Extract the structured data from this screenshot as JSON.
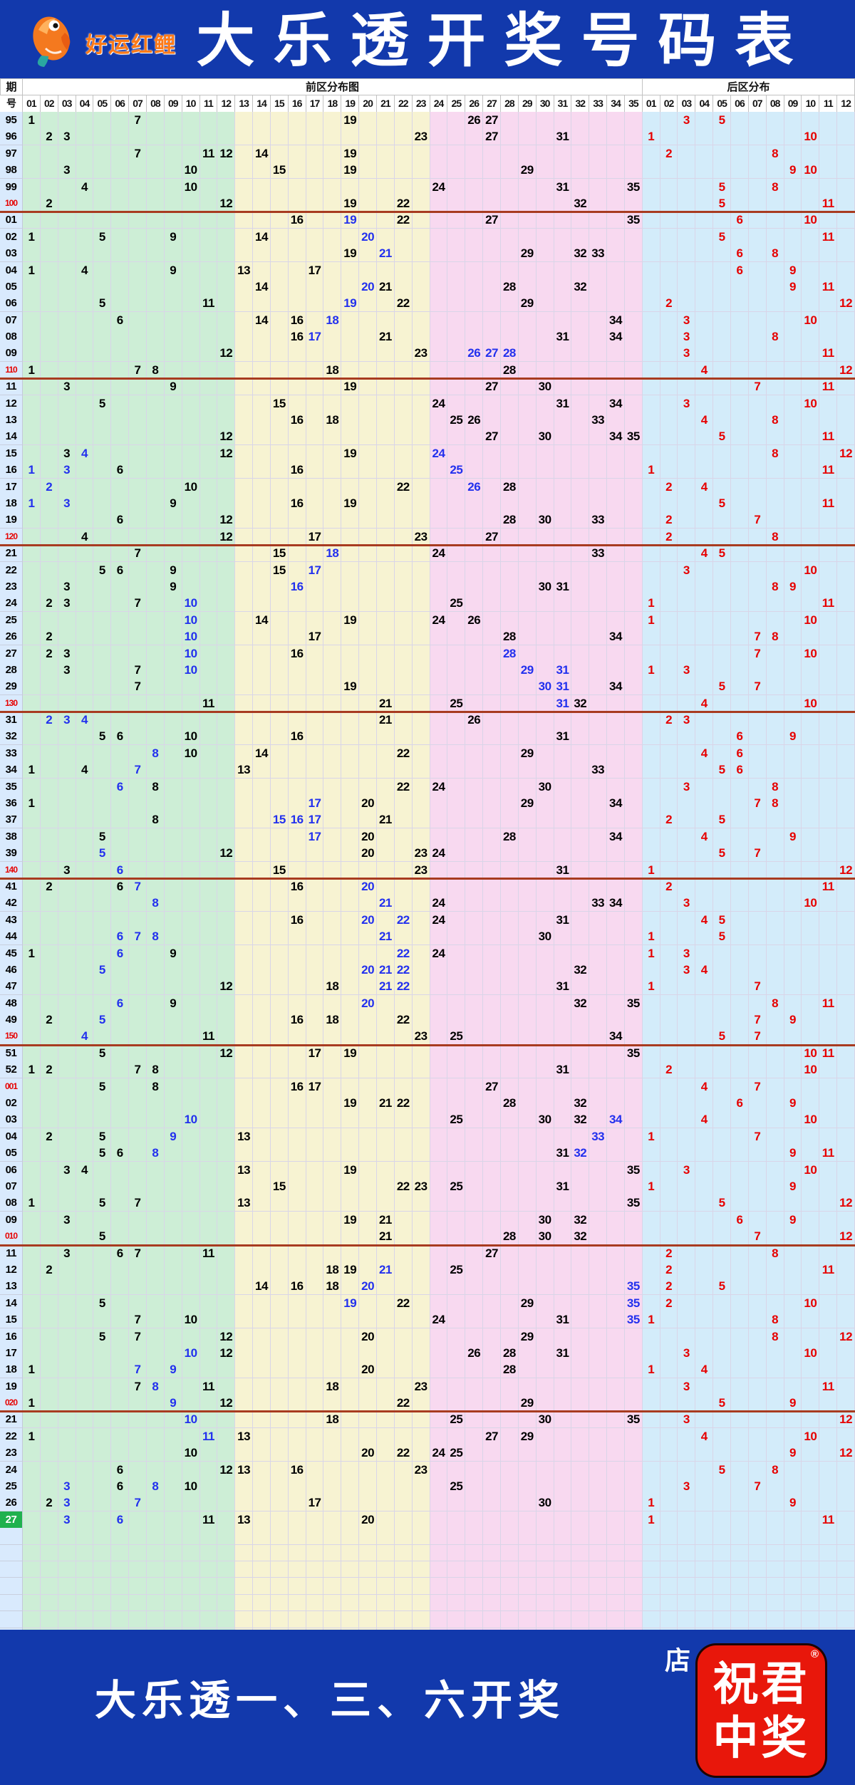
{
  "header": {
    "logo_text": "好运红鲤",
    "title": "大乐透开奖号码表"
  },
  "colors": {
    "banner_blue": "#1239ac",
    "zone_front_green": "#cdeed6",
    "zone_front_yellow": "#f7f3d2",
    "zone_front_pink": "#f8d9f0",
    "zone_back_blue": "#d3ecfa",
    "period_column_blue": "#d9eafd",
    "number_black": "#000000",
    "number_blue": "#2230ee",
    "number_red": "#e60000",
    "milestone_line_red": "#a83b20",
    "latest_row_green": "#1fb14e",
    "logo_orange": "#ff7a18",
    "badge_red": "#e8170b"
  },
  "chart_data": {
    "type": "table",
    "title": "大乐透开奖号码表",
    "period_label_top": "期",
    "period_label_bottom": "号",
    "front_zone_label": "前区分布图",
    "back_zone_label": "后区分布",
    "front_columns": [
      "01",
      "02",
      "03",
      "04",
      "05",
      "06",
      "07",
      "08",
      "09",
      "10",
      "11",
      "12",
      "13",
      "14",
      "15",
      "16",
      "17",
      "18",
      "19",
      "20",
      "21",
      "22",
      "23",
      "24",
      "25",
      "26",
      "27",
      "28",
      "29",
      "30",
      "31",
      "32",
      "33",
      "34",
      "35"
    ],
    "back_columns": [
      "01",
      "02",
      "03",
      "04",
      "05",
      "06",
      "07",
      "08",
      "09",
      "10",
      "11",
      "12"
    ],
    "zone_splits": {
      "green_cols": "01-12",
      "yellow_cols": "13-23",
      "pink_cols": "24-35"
    },
    "value_suffix_b_means": "blue-highlighted number",
    "rows": [
      {
        "p": "95",
        "f": [
          "1",
          "7",
          "19",
          "26",
          "27"
        ],
        "b": [
          "3",
          "5"
        ]
      },
      {
        "p": "96",
        "f": [
          "2",
          "3",
          "23",
          "27",
          "31"
        ],
        "b": [
          "1",
          "10"
        ]
      },
      {
        "p": "97",
        "f": [
          "7",
          "11",
          "12",
          "14",
          "19"
        ],
        "b": [
          "2",
          "8"
        ]
      },
      {
        "p": "98",
        "f": [
          "3",
          "10",
          "15",
          "19",
          "29"
        ],
        "b": [
          "9",
          "10"
        ]
      },
      {
        "p": "99",
        "f": [
          "4",
          "10",
          "24",
          "31",
          "35"
        ],
        "b": [
          "5",
          "8"
        ]
      },
      {
        "p": "100",
        "f": [
          "2",
          "12",
          "19",
          "22",
          "32"
        ],
        "b": [
          "5",
          "11"
        ],
        "r": 1,
        "l": 1
      },
      {
        "p": "01",
        "f": [
          "16",
          "19b",
          "22",
          "27",
          "35"
        ],
        "b": [
          "6",
          "10"
        ]
      },
      {
        "p": "02",
        "f": [
          "1",
          "5",
          "9",
          "14",
          "20b"
        ],
        "b": [
          "5",
          "11"
        ]
      },
      {
        "p": "03",
        "f": [
          "19",
          "21b",
          "29",
          "32",
          "33"
        ],
        "b": [
          "6",
          "8"
        ]
      },
      {
        "p": "04",
        "f": [
          "1",
          "4",
          "9",
          "13",
          "17"
        ],
        "b": [
          "6",
          "9"
        ]
      },
      {
        "p": "05",
        "f": [
          "14",
          "20b",
          "21",
          "28",
          "32"
        ],
        "b": [
          "9",
          "11"
        ]
      },
      {
        "p": "06",
        "f": [
          "5",
          "11",
          "19b",
          "22",
          "29"
        ],
        "b": [
          "2",
          "12"
        ]
      },
      {
        "p": "07",
        "f": [
          "6",
          "14",
          "16",
          "18b",
          "34"
        ],
        "b": [
          "3",
          "10"
        ]
      },
      {
        "p": "08",
        "f": [
          "16",
          "17b",
          "21",
          "31",
          "34"
        ],
        "b": [
          "3",
          "8"
        ]
      },
      {
        "p": "09",
        "f": [
          "12",
          "23",
          "26b",
          "27b",
          "28b"
        ],
        "b": [
          "3",
          "11"
        ]
      },
      {
        "p": "110",
        "f": [
          "1",
          "7",
          "8",
          "18",
          "28"
        ],
        "b": [
          "4",
          "12"
        ],
        "r": 1,
        "l": 1
      },
      {
        "p": "11",
        "f": [
          "3",
          "9",
          "19",
          "27",
          "30"
        ],
        "b": [
          "7",
          "11"
        ]
      },
      {
        "p": "12",
        "f": [
          "5",
          "15",
          "24",
          "31",
          "34"
        ],
        "b": [
          "3",
          "10"
        ]
      },
      {
        "p": "13",
        "f": [
          "16",
          "18",
          "25",
          "26",
          "33"
        ],
        "b": [
          "4",
          "8"
        ]
      },
      {
        "p": "14",
        "f": [
          "12",
          "27",
          "30",
          "34",
          "35"
        ],
        "b": [
          "5",
          "11"
        ]
      },
      {
        "p": "15",
        "f": [
          "3",
          "4b",
          "12",
          "19",
          "24b"
        ],
        "b": [
          "8",
          "12"
        ]
      },
      {
        "p": "16",
        "f": [
          "1b",
          "3b",
          "6",
          "16",
          "25b"
        ],
        "b": [
          "1",
          "11"
        ]
      },
      {
        "p": "17",
        "f": [
          "2b",
          "10",
          "22",
          "26b",
          "28"
        ],
        "b": [
          "2",
          "4"
        ]
      },
      {
        "p": "18",
        "f": [
          "1b",
          "3b",
          "9",
          "16",
          "19"
        ],
        "b": [
          "5",
          "11"
        ]
      },
      {
        "p": "19",
        "f": [
          "6",
          "12",
          "28",
          "30",
          "33"
        ],
        "b": [
          "2",
          "7"
        ]
      },
      {
        "p": "120",
        "f": [
          "4",
          "12",
          "17",
          "23",
          "27"
        ],
        "b": [
          "2",
          "8"
        ],
        "r": 1,
        "l": 1
      },
      {
        "p": "21",
        "f": [
          "7",
          "15",
          "18b",
          "24",
          "33"
        ],
        "b": [
          "4",
          "5"
        ]
      },
      {
        "p": "22",
        "f": [
          "5",
          "6",
          "9",
          "15",
          "17b"
        ],
        "b": [
          "3",
          "10"
        ]
      },
      {
        "p": "23",
        "f": [
          "3",
          "9",
          "16b",
          "30",
          "31"
        ],
        "b": [
          "8",
          "9"
        ]
      },
      {
        "p": "24",
        "f": [
          "2",
          "3",
          "7",
          "10b",
          "25"
        ],
        "b": [
          "1",
          "11"
        ]
      },
      {
        "p": "25",
        "f": [
          "10b",
          "14",
          "19",
          "24",
          "26"
        ],
        "b": [
          "1",
          "10"
        ]
      },
      {
        "p": "26",
        "f": [
          "2",
          "10b",
          "17",
          "28",
          "34"
        ],
        "b": [
          "7",
          "8"
        ]
      },
      {
        "p": "27",
        "f": [
          "2",
          "3",
          "10b",
          "16",
          "28b"
        ],
        "b": [
          "7",
          "10"
        ]
      },
      {
        "p": "28",
        "f": [
          "3",
          "7",
          "10b",
          "29b",
          "31b"
        ],
        "b": [
          "1",
          "3"
        ]
      },
      {
        "p": "29",
        "f": [
          "7",
          "19",
          "30b",
          "31b",
          "34"
        ],
        "b": [
          "5",
          "7"
        ]
      },
      {
        "p": "130",
        "f": [
          "11",
          "21",
          "25",
          "31b",
          "32"
        ],
        "b": [
          "4",
          "10"
        ],
        "r": 1,
        "l": 1
      },
      {
        "p": "31",
        "f": [
          "2b",
          "3b",
          "4b",
          "21",
          "26"
        ],
        "b": [
          "2",
          "3"
        ]
      },
      {
        "p": "32",
        "f": [
          "5",
          "6",
          "10",
          "16",
          "31"
        ],
        "b": [
          "6",
          "9"
        ]
      },
      {
        "p": "33",
        "f": [
          "8b",
          "10",
          "14",
          "22",
          "29"
        ],
        "b": [
          "4",
          "6"
        ]
      },
      {
        "p": "34",
        "f": [
          "1",
          "4",
          "7b",
          "13",
          "33"
        ],
        "b": [
          "5",
          "6"
        ]
      },
      {
        "p": "35",
        "f": [
          "6b",
          "8",
          "22",
          "24",
          "30"
        ],
        "b": [
          "3",
          "8"
        ]
      },
      {
        "p": "36",
        "f": [
          "1",
          "17b",
          "20",
          "29",
          "34"
        ],
        "b": [
          "7",
          "8"
        ]
      },
      {
        "p": "37",
        "f": [
          "8",
          "15b",
          "16b",
          "17b",
          "21"
        ],
        "b": [
          "2",
          "5"
        ]
      },
      {
        "p": "38",
        "f": [
          "5",
          "17b",
          "20",
          "28",
          "34"
        ],
        "b": [
          "4",
          "9"
        ]
      },
      {
        "p": "39",
        "f": [
          "5b",
          "12",
          "20",
          "23",
          "24"
        ],
        "b": [
          "5",
          "7"
        ]
      },
      {
        "p": "140",
        "f": [
          "3",
          "6b",
          "15",
          "23",
          "31"
        ],
        "b": [
          "1",
          "12"
        ],
        "r": 1,
        "l": 1
      },
      {
        "p": "41",
        "f": [
          "2",
          "6",
          "7b",
          "16",
          "20b"
        ],
        "b": [
          "2",
          "11"
        ]
      },
      {
        "p": "42",
        "f": [
          "8b",
          "21b",
          "24",
          "33",
          "34"
        ],
        "b": [
          "3",
          "10"
        ]
      },
      {
        "p": "43",
        "f": [
          "16",
          "20b",
          "22b",
          "24",
          "31"
        ],
        "b": [
          "4",
          "5"
        ]
      },
      {
        "p": "44",
        "f": [
          "6b",
          "7b",
          "8b",
          "21b",
          "30"
        ],
        "b": [
          "1",
          "5"
        ]
      },
      {
        "p": "45",
        "f": [
          "1",
          "6b",
          "9",
          "22b",
          "24"
        ],
        "b": [
          "1",
          "3"
        ]
      },
      {
        "p": "46",
        "f": [
          "5b",
          "20b",
          "21b",
          "22b",
          "32"
        ],
        "b": [
          "3",
          "4"
        ]
      },
      {
        "p": "47",
        "f": [
          "12",
          "18",
          "21b",
          "22b",
          "31"
        ],
        "b": [
          "1",
          "7"
        ]
      },
      {
        "p": "48",
        "f": [
          "6b",
          "9",
          "20b",
          "32",
          "35"
        ],
        "b": [
          "8",
          "11"
        ]
      },
      {
        "p": "49",
        "f": [
          "2",
          "5b",
          "16",
          "18",
          "22"
        ],
        "b": [
          "7",
          "9"
        ]
      },
      {
        "p": "150",
        "f": [
          "4b",
          "11",
          "23",
          "25",
          "34"
        ],
        "b": [
          "5",
          "7"
        ],
        "r": 1,
        "l": 1
      },
      {
        "p": "51",
        "f": [
          "5",
          "12",
          "17",
          "19",
          "35"
        ],
        "b": [
          "10",
          "11"
        ]
      },
      {
        "p": "52",
        "f": [
          "1",
          "2",
          "7",
          "8",
          "31"
        ],
        "b": [
          "2",
          "10"
        ]
      },
      {
        "p": "001",
        "f": [
          "5",
          "8",
          "16",
          "17",
          "27"
        ],
        "b": [
          "4",
          "7"
        ],
        "r": 1
      },
      {
        "p": "02",
        "f": [
          "19",
          "21",
          "22",
          "28",
          "32"
        ],
        "b": [
          "6",
          "9"
        ]
      },
      {
        "p": "03",
        "f": [
          "10b",
          "25",
          "30",
          "32",
          "34b"
        ],
        "b": [
          "4",
          "10"
        ]
      },
      {
        "p": "04",
        "f": [
          "2",
          "5",
          "9b",
          "13",
          "33b"
        ],
        "b": [
          "1",
          "7"
        ]
      },
      {
        "p": "05",
        "f": [
          "5",
          "6",
          "8b",
          "31",
          "32b"
        ],
        "b": [
          "9",
          "11"
        ]
      },
      {
        "p": "06",
        "f": [
          "3",
          "4",
          "13",
          "19",
          "35"
        ],
        "b": [
          "3",
          "10"
        ]
      },
      {
        "p": "07",
        "f": [
          "15",
          "22",
          "23",
          "25",
          "31"
        ],
        "b": [
          "1",
          "9"
        ]
      },
      {
        "p": "08",
        "f": [
          "1",
          "5",
          "7",
          "13",
          "35"
        ],
        "b": [
          "5",
          "12"
        ]
      },
      {
        "p": "09",
        "f": [
          "3",
          "19",
          "21",
          "30",
          "32"
        ],
        "b": [
          "6",
          "9"
        ]
      },
      {
        "p": "010",
        "f": [
          "5",
          "21",
          "28",
          "30",
          "32"
        ],
        "b": [
          "7",
          "12"
        ],
        "r": 1,
        "l": 1
      },
      {
        "p": "11",
        "f": [
          "3",
          "6",
          "7",
          "11",
          "27"
        ],
        "b": [
          "2",
          "8"
        ]
      },
      {
        "p": "12",
        "f": [
          "2",
          "18",
          "19",
          "21b",
          "25"
        ],
        "b": [
          "2",
          "11"
        ]
      },
      {
        "p": "13",
        "f": [
          "14",
          "16",
          "18",
          "20b",
          "35b"
        ],
        "b": [
          "2",
          "5"
        ]
      },
      {
        "p": "14",
        "f": [
          "5",
          "19b",
          "22",
          "29",
          "35b"
        ],
        "b": [
          "2",
          "10"
        ]
      },
      {
        "p": "15",
        "f": [
          "7",
          "10",
          "24",
          "31",
          "35b"
        ],
        "b": [
          "1",
          "8"
        ]
      },
      {
        "p": "16",
        "f": [
          "5",
          "7",
          "12",
          "20",
          "29"
        ],
        "b": [
          "8",
          "12"
        ]
      },
      {
        "p": "17",
        "f": [
          "10b",
          "12",
          "26",
          "28",
          "31"
        ],
        "b": [
          "3",
          "10"
        ]
      },
      {
        "p": "18",
        "f": [
          "1",
          "7b",
          "9b",
          "20",
          "28"
        ],
        "b": [
          "1",
          "4"
        ]
      },
      {
        "p": "19",
        "f": [
          "7",
          "8b",
          "11",
          "18",
          "23"
        ],
        "b": [
          "3",
          "11"
        ]
      },
      {
        "p": "020",
        "f": [
          "1",
          "9b",
          "12",
          "22",
          "29"
        ],
        "b": [
          "5",
          "9"
        ],
        "r": 1,
        "l": 1
      },
      {
        "p": "21",
        "f": [
          "10b",
          "18",
          "25",
          "30",
          "35"
        ],
        "b": [
          "3",
          "12"
        ]
      },
      {
        "p": "22",
        "f": [
          "1",
          "11b",
          "13",
          "27",
          "29"
        ],
        "b": [
          "4",
          "10"
        ]
      },
      {
        "p": "23",
        "f": [
          "10",
          "20",
          "22",
          "24",
          "25"
        ],
        "b": [
          "9",
          "12"
        ]
      },
      {
        "p": "24",
        "f": [
          "6",
          "12",
          "13",
          "16",
          "23"
        ],
        "b": [
          "5",
          "8"
        ]
      },
      {
        "p": "25",
        "f": [
          "3b",
          "6",
          "8b",
          "10",
          "25"
        ],
        "b": [
          "3",
          "7"
        ]
      },
      {
        "p": "26",
        "f": [
          "2",
          "3b",
          "7b",
          "17",
          "30"
        ],
        "b": [
          "1",
          "9"
        ]
      },
      {
        "p": "27",
        "f": [
          "3b",
          "6b",
          "11",
          "13",
          "20"
        ],
        "b": [
          "1",
          "11"
        ],
        "h": 1
      }
    ]
  },
  "footer": {
    "slogan": "大乐透一、三、六开奖",
    "scan_vertical": "扫码进店",
    "badge_line1": "祝君",
    "badge_line2": "中奖",
    "reg_mark": "®"
  }
}
